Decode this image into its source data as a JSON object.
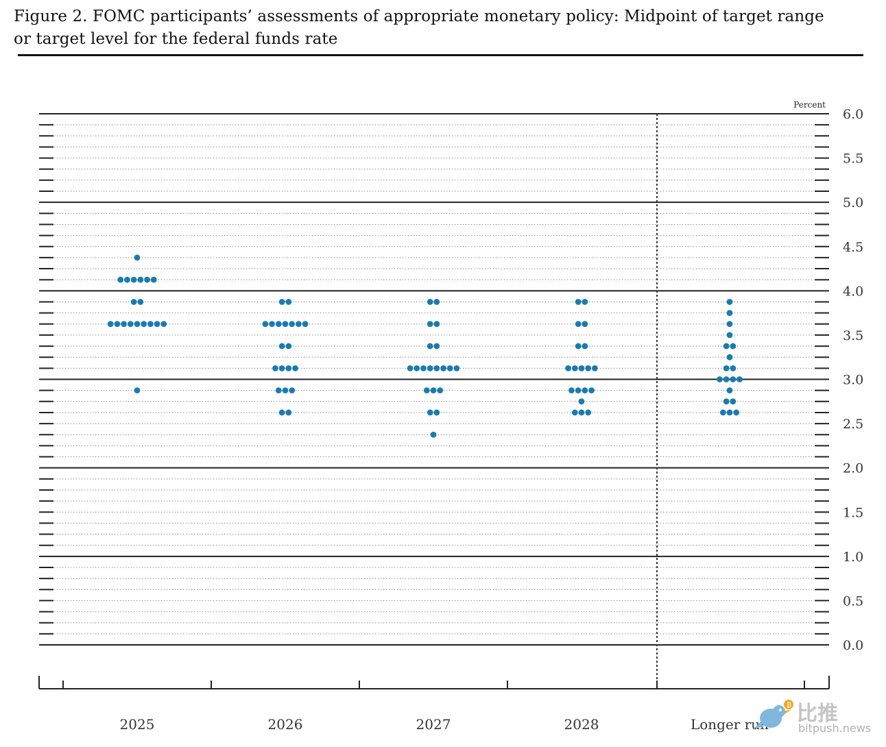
{
  "figure": {
    "title": "Figure 2. FOMC participants’ assessments of appropriate monetary policy: Midpoint of target range or target level for the federal funds rate"
  },
  "chart_data": {
    "type": "scatter",
    "title": "Figure 2. FOMC participants’ assessments of appropriate monetary policy: Midpoint of target range or target level for the federal funds rate",
    "xlabel": "",
    "ylabel": "Percent",
    "ylim": [
      0,
      6
    ],
    "y_ticks": [
      "0.0",
      "0.5",
      "1.0",
      "1.5",
      "2.0",
      "2.5",
      "3.0",
      "3.5",
      "4.0",
      "4.5",
      "5.0",
      "5.5",
      "6.0"
    ],
    "categories": [
      "2025",
      "2026",
      "2027",
      "2028",
      "Longer run"
    ],
    "grid": "dotted horizontal every 0.125, solid every 1.0",
    "separator_before": "Longer run",
    "dot_color": "#1a7bb0",
    "dots": [
      {
        "category": "2025",
        "points": [
          {
            "rate": 4.375,
            "count": 1
          },
          {
            "rate": 4.125,
            "count": 6
          },
          {
            "rate": 3.875,
            "count": 2
          },
          {
            "rate": 3.625,
            "count": 9
          },
          {
            "rate": 2.875,
            "count": 1
          }
        ]
      },
      {
        "category": "2026",
        "points": [
          {
            "rate": 3.875,
            "count": 2
          },
          {
            "rate": 3.625,
            "count": 7
          },
          {
            "rate": 3.375,
            "count": 2
          },
          {
            "rate": 3.125,
            "count": 4
          },
          {
            "rate": 2.875,
            "count": 3
          },
          {
            "rate": 2.625,
            "count": 2
          }
        ]
      },
      {
        "category": "2027",
        "points": [
          {
            "rate": 3.875,
            "count": 2
          },
          {
            "rate": 3.625,
            "count": 2
          },
          {
            "rate": 3.375,
            "count": 2
          },
          {
            "rate": 3.125,
            "count": 8
          },
          {
            "rate": 2.875,
            "count": 3
          },
          {
            "rate": 2.625,
            "count": 2
          },
          {
            "rate": 2.375,
            "count": 1
          }
        ]
      },
      {
        "category": "2028",
        "points": [
          {
            "rate": 3.875,
            "count": 2
          },
          {
            "rate": 3.625,
            "count": 2
          },
          {
            "rate": 3.375,
            "count": 2
          },
          {
            "rate": 3.125,
            "count": 5
          },
          {
            "rate": 2.875,
            "count": 4
          },
          {
            "rate": 2.75,
            "count": 1
          },
          {
            "rate": 2.625,
            "count": 3
          }
        ]
      },
      {
        "category": "Longer run",
        "points": [
          {
            "rate": 3.875,
            "count": 1
          },
          {
            "rate": 3.75,
            "count": 1
          },
          {
            "rate": 3.625,
            "count": 1
          },
          {
            "rate": 3.5,
            "count": 1
          },
          {
            "rate": 3.375,
            "count": 2
          },
          {
            "rate": 3.25,
            "count": 1
          },
          {
            "rate": 3.125,
            "count": 2
          },
          {
            "rate": 3.0,
            "count": 4
          },
          {
            "rate": 2.875,
            "count": 1
          },
          {
            "rate": 2.75,
            "count": 2
          },
          {
            "rate": 2.625,
            "count": 3
          }
        ]
      }
    ]
  },
  "watermark": {
    "name_cn": "比推",
    "name_en": "bitpush.news"
  }
}
